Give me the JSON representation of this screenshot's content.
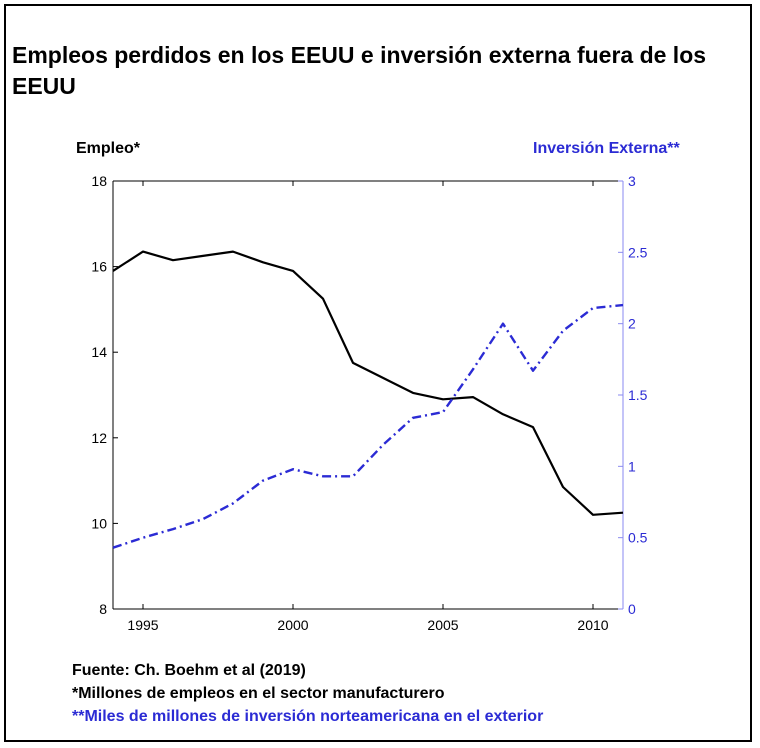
{
  "header": {
    "title": "Empleos perdidos en los EEUU e inversión externa fuera de los EEUU"
  },
  "footnotes": {
    "source": "Fuente: Ch. Boehm et al (2019)",
    "note1": "*Millones de empleos en el sector manufacturero",
    "note2": "**Miles de millones de inversión norteamericana en el exterior"
  },
  "colors": {
    "employment": "#000000",
    "investment": "#2b2bd4",
    "right_axis": "#8a8af0"
  },
  "chart_data": {
    "type": "line",
    "title": "Empleos perdidos en los EEUU e inversión externa fuera de los EEUU",
    "xlabel": "",
    "xlim": [
      1994,
      2011
    ],
    "x_ticks": [
      1995,
      2000,
      2005,
      2010
    ],
    "x_tick_labels": [
      "1995",
      "2000",
      "2005",
      "2010"
    ],
    "ylabel_left": "Empleo*",
    "ylim_left": [
      8,
      18
    ],
    "y_ticks_left": [
      8,
      10,
      12,
      14,
      16,
      18
    ],
    "y_tick_labels_left": [
      "8",
      "10",
      "12",
      "14",
      "16",
      "18"
    ],
    "ylabel_right": "Inversión Externa**",
    "ylim_right": [
      0,
      3
    ],
    "y_ticks_right": [
      0,
      0.5,
      1,
      1.5,
      2,
      2.5,
      3
    ],
    "y_tick_labels_right": [
      "0",
      "0.5",
      "1",
      "1.5",
      "2",
      "2.5",
      "3"
    ],
    "grid": false,
    "series": [
      {
        "name": "Empleo",
        "axis": "left",
        "style": "solid",
        "x": [
          1994,
          1995,
          1996,
          1997,
          1998,
          1999,
          2000,
          2001,
          2002,
          2003,
          2004,
          2005,
          2006,
          2007,
          2008,
          2009,
          2010,
          2011
        ],
        "values": [
          15.9,
          16.35,
          16.15,
          16.25,
          16.35,
          16.1,
          15.9,
          15.25,
          13.75,
          13.4,
          13.05,
          12.9,
          12.95,
          12.55,
          12.25,
          10.85,
          10.2,
          10.25
        ]
      },
      {
        "name": "Inversión Externa",
        "axis": "right",
        "style": "dashdot",
        "x": [
          1994,
          1995,
          1996,
          1997,
          1998,
          1999,
          2000,
          2001,
          2002,
          2003,
          2004,
          2005,
          2006,
          2007,
          2008,
          2009,
          2010,
          2011
        ],
        "values": [
          0.43,
          0.5,
          0.56,
          0.63,
          0.74,
          0.9,
          0.98,
          0.93,
          0.93,
          1.15,
          1.34,
          1.38,
          1.68,
          2.0,
          1.67,
          1.95,
          2.11,
          2.13
        ]
      }
    ]
  }
}
